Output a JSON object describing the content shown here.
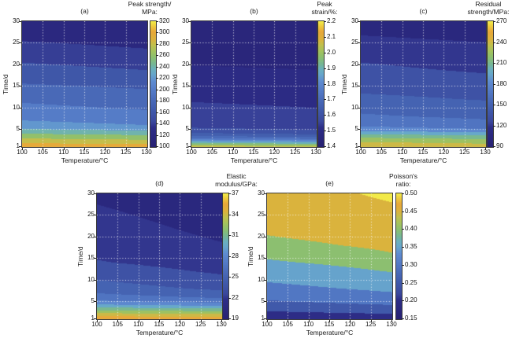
{
  "figure": {
    "background": "#ffffff",
    "axis_color": "#3c3c3c",
    "grid_color": "rgba(255,255,255,0.9)"
  },
  "colormap": {
    "stops": [
      [
        0.0,
        "#272173"
      ],
      [
        0.15,
        "#2d2d87"
      ],
      [
        0.2,
        "#3b489d"
      ],
      [
        0.28,
        "#3f58a9"
      ],
      [
        0.36,
        "#4868b6"
      ],
      [
        0.44,
        "#5379c5"
      ],
      [
        0.52,
        "#5f8cd1"
      ],
      [
        0.58,
        "#67a7cb"
      ],
      [
        0.62,
        "#6bb0bd"
      ],
      [
        0.66,
        "#76b795"
      ],
      [
        0.71,
        "#8abf72"
      ],
      [
        0.76,
        "#a2c25e"
      ],
      [
        0.81,
        "#bfc04e"
      ],
      [
        0.86,
        "#dcb23c"
      ],
      [
        0.92,
        "#e8a83a"
      ],
      [
        0.96,
        "#edc93d"
      ],
      [
        1.0,
        "#f2ea49"
      ]
    ]
  },
  "chart_data": [
    {
      "panel": "(a)",
      "type": "filled-contour",
      "title": "Peak strength/ MPa:",
      "title_lines": [
        "Peak strength/",
        "MPa:"
      ],
      "xlabel": "Temperature/°C",
      "ylabel": "Time/d",
      "x_range": [
        100,
        130
      ],
      "y_range": [
        1,
        30
      ],
      "x_ticks": [
        "100",
        "105",
        "110",
        "115",
        "120",
        "125",
        "130"
      ],
      "y_ticks": [
        "30",
        "25",
        "20",
        "15",
        "10",
        "5",
        "1"
      ],
      "grid_on": true,
      "levels": {
        "min": 100,
        "max": 320,
        "step": 20
      },
      "colorbar_ticks": [
        "320",
        "300",
        "280",
        "260",
        "240",
        "220",
        "200",
        "180",
        "160",
        "140",
        "120",
        "100"
      ],
      "grid": {
        "temps": [
          100,
          130
        ],
        "times": [
          1,
          2,
          3,
          4,
          5,
          6,
          8,
          10,
          12,
          14,
          16,
          18,
          20,
          22,
          24,
          26,
          28,
          30
        ],
        "values": [
          [
            293,
            277,
            258,
            240,
            222,
            208,
            193,
            184,
            177,
            169,
            158,
            150,
            142,
            134,
            126,
            118,
            111,
            104
          ],
          [
            290,
            272,
            252,
            234,
            214,
            200,
            186,
            178,
            171,
            162,
            151,
            143,
            135,
            127,
            119,
            112,
            106,
            100
          ]
        ]
      }
    },
    {
      "panel": "(b)",
      "type": "filled-contour",
      "title": "Peak strain/%:",
      "title_lines": [
        "Peak",
        "strain/%:"
      ],
      "xlabel": "Temperature/°C",
      "ylabel": "Time/d",
      "x_range": [
        100,
        130
      ],
      "y_range": [
        1,
        30
      ],
      "x_ticks": [
        "100",
        "105",
        "110",
        "115",
        "120",
        "125",
        "130"
      ],
      "y_ticks": [
        "30",
        "25",
        "20",
        "15",
        "10",
        "5",
        "1"
      ],
      "grid_on": true,
      "levels": {
        "min": 1.4,
        "max": 2.2,
        "step": 0.05
      },
      "colorbar_ticks": [
        "2.2",
        "2.1",
        "2.0",
        "1.9",
        "1.8",
        "1.7",
        "1.6",
        "1.5",
        "1.4"
      ],
      "grid": {
        "temps": [
          100,
          130
        ],
        "times": [
          1,
          2,
          3,
          4,
          5,
          6,
          8,
          10,
          12,
          14,
          16,
          18,
          20,
          22,
          24,
          26,
          28,
          30
        ],
        "values": [
          [
            2.04,
            1.87,
            1.69,
            1.61,
            1.558,
            1.538,
            1.522,
            1.508,
            1.496,
            1.486,
            1.474,
            1.461,
            1.449,
            1.44,
            1.434,
            1.428,
            1.423,
            1.418
          ],
          [
            2.02,
            1.845,
            1.665,
            1.59,
            1.548,
            1.53,
            1.514,
            1.5,
            1.489,
            1.479,
            1.467,
            1.455,
            1.443,
            1.436,
            1.43,
            1.424,
            1.419,
            1.414
          ]
        ]
      }
    },
    {
      "panel": "(c)",
      "type": "filled-contour",
      "title": "Residual strength/MPa:",
      "title_lines": [
        "Residual",
        "strength/MPa:"
      ],
      "xlabel": "Temperature/°C",
      "ylabel": "Time/d",
      "x_range": [
        100,
        130
      ],
      "y_range": [
        1,
        30
      ],
      "x_ticks": [
        "100",
        "105",
        "110",
        "115",
        "120",
        "125",
        "130"
      ],
      "y_ticks": [
        "30",
        "25",
        "20",
        "15",
        "10",
        "5",
        "1"
      ],
      "grid_on": true,
      "levels": {
        "min": 90,
        "max": 270,
        "step": 15
      },
      "colorbar_ticks": [
        "270",
        "240",
        "210",
        "180",
        "150",
        "120",
        "90"
      ],
      "grid": {
        "temps": [
          100,
          130
        ],
        "times": [
          1,
          2,
          3,
          4,
          5,
          6,
          8,
          10,
          12,
          14,
          16,
          18,
          20,
          22,
          24,
          26,
          28,
          30
        ],
        "values": [
          [
            237,
            226,
            211,
            193,
            172,
            162,
            152,
            146,
            139,
            133,
            128,
            124,
            121,
            117,
            112,
            107,
            102,
            97
          ],
          [
            234,
            221,
            206,
            187,
            166,
            156,
            147,
            141,
            134,
            129,
            124,
            120,
            116,
            112,
            108,
            103,
            98,
            94
          ]
        ]
      }
    },
    {
      "panel": "(d)",
      "type": "filled-contour",
      "title": "Elastic modulus/GPa:",
      "title_lines": [
        "Elastic",
        "modulus/GPa:"
      ],
      "xlabel": "Temperature/°C",
      "ylabel": "Time/d",
      "x_range": [
        100,
        130
      ],
      "y_range": [
        1,
        30
      ],
      "x_ticks": [
        "100",
        "105",
        "110",
        "115",
        "120",
        "125",
        "130"
      ],
      "y_ticks": [
        "30",
        "25",
        "20",
        "15",
        "10",
        "5",
        "1"
      ],
      "grid_on": true,
      "levels": {
        "min": 19,
        "max": 37,
        "step": 1.5
      },
      "colorbar_ticks": [
        "37",
        "34",
        "31",
        "28",
        "25",
        "22",
        "19"
      ],
      "grid": {
        "temps": [
          100,
          130
        ],
        "times": [
          1,
          2,
          3,
          4,
          5,
          6,
          8,
          10,
          12,
          14,
          16,
          18,
          20,
          22,
          24,
          26,
          28,
          30
        ],
        "values": [
          [
            35.2,
            33.2,
            31.0,
            28.6,
            26.8,
            25.6,
            24.3,
            23.5,
            22.7,
            22.1,
            21.8,
            21.55,
            21.3,
            21.05,
            20.85,
            20.65,
            20.45,
            20.3
          ],
          [
            34.9,
            32.8,
            30.4,
            28.0,
            26.0,
            24.8,
            23.2,
            22.35,
            21.8,
            21.4,
            21.0,
            20.6,
            20.35,
            20.15,
            19.98,
            19.82,
            19.68,
            19.55
          ]
        ]
      }
    },
    {
      "panel": "(e)",
      "type": "filled-contour",
      "title": "Poisson's ratio:",
      "title_lines": [
        "Poisson's",
        "ratio:"
      ],
      "xlabel": "Temperature/°C",
      "ylabel": "Time/d",
      "x_range": [
        100,
        130
      ],
      "y_range": [
        1,
        30
      ],
      "x_ticks": [
        "100",
        "105",
        "110",
        "115",
        "120",
        "125",
        "130"
      ],
      "y_ticks": [
        "30",
        "25",
        "20",
        "15",
        "10",
        "5",
        "1"
      ],
      "grid_on": true,
      "levels": {
        "min": 0.15,
        "max": 0.5,
        "step": 0.05
      },
      "colorbar_ticks": [
        "0.50",
        "0.45",
        "0.40",
        "0.35",
        "0.30",
        "0.25",
        "0.20",
        "0.15"
      ],
      "grid": {
        "temps": [
          100,
          130
        ],
        "times": [
          1,
          2,
          3,
          4,
          5,
          6,
          8,
          10,
          12,
          14,
          16,
          18,
          20,
          22,
          24,
          26,
          28,
          30
        ],
        "values": [
          [
            0.165,
            0.185,
            0.205,
            0.225,
            0.245,
            0.26,
            0.285,
            0.305,
            0.32,
            0.343,
            0.36,
            0.385,
            0.398,
            0.408,
            0.415,
            0.42,
            0.425,
            0.43
          ],
          [
            0.172,
            0.196,
            0.22,
            0.245,
            0.268,
            0.285,
            0.31,
            0.33,
            0.352,
            0.368,
            0.398,
            0.41,
            0.42,
            0.428,
            0.436,
            0.443,
            0.45,
            0.457
          ]
        ]
      }
    }
  ]
}
